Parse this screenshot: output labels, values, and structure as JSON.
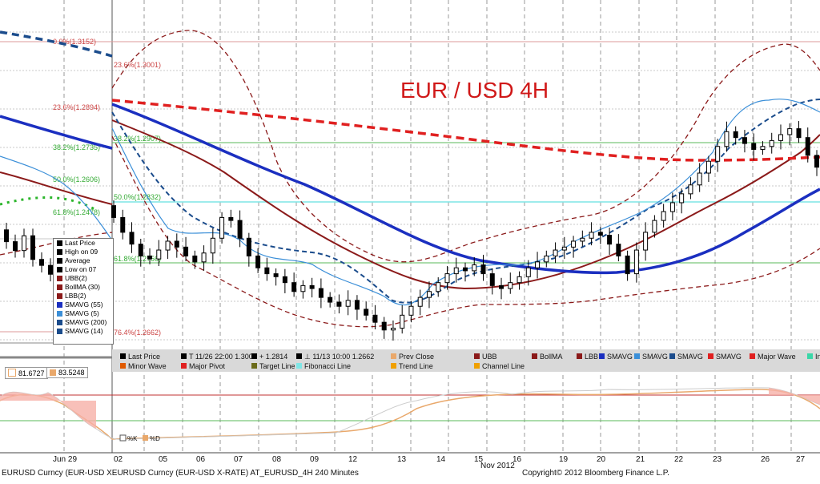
{
  "chart_data": {
    "type": "candlestick",
    "title": "EUR / USD 4H",
    "series": [
      {
        "name": "BollMA",
        "color": "#8b1a1a"
      },
      {
        "name": "SMAVG (55)",
        "color": "#1b2fc0"
      },
      {
        "name": "SMAVG (5)",
        "color": "#3b8fd8"
      },
      {
        "name": "SMAVG (200)",
        "color": "#e02020"
      },
      {
        "name": "SMAVG (14)",
        "color": "#1b4c8c"
      }
    ],
    "fibonacci": [
      {
        "label": "0.0%(1.3152)",
        "value": 1.3152
      },
      {
        "label": "23.6%(1.3001)",
        "value": 1.3001
      },
      {
        "label": "23.6%(1.2894)",
        "value": 1.2894
      },
      {
        "label": "38.2%(1.2907)",
        "value": 1.2907
      },
      {
        "label": "50.0%(1.2832)",
        "value": 1.2832
      },
      {
        "label": "61.8%(1.2756)",
        "value": 1.2756
      },
      {
        "label": "76.4%(1.2662)",
        "value": 1.2662
      }
    ],
    "left_labels": [
      "38.2%(1.2735)",
      "50.0%(1.2606)",
      "61.8%(1.2478)"
    ],
    "x_ticks": [
      "Jun 29",
      "02",
      "05",
      "06",
      "07",
      "08",
      "09",
      "12",
      "13",
      "14",
      "15",
      "16",
      "19",
      "20",
      "21",
      "22",
      "23",
      "26",
      "27"
    ],
    "x_sublabel": "Nov 2012",
    "legend_rows": [
      [
        "Last Price",
        "T 11/26 22:00 1.3009",
        "+ 1.2814",
        "⊥ 11/13 10:00 1.2662",
        "Prev Close",
        "UBB",
        "BollMA",
        "LBB",
        "SMAVG",
        "SMAVG",
        "SMAVG",
        "SMAVG",
        "Major Wave",
        "In"
      ],
      [
        "Minor Wave",
        "Major Pivot",
        "Target Line",
        "Fibonacci Line",
        "Trend Line",
        "Channel Line"
      ]
    ],
    "mini_legend": [
      "Last Price",
      "High on 09",
      "Average",
      "Low on 07",
      "UBB(2)",
      "BollMA (30)",
      "LBB(2)",
      "SMAVG (55)",
      "SMAVG (5)",
      "SMAVG (200)",
      "SMAVG (14)"
    ],
    "oscillator": {
      "k_value": "81.6727",
      "d_value": "83.5248",
      "k_label": "%K",
      "d_label": "%D"
    },
    "closes": [
      1.2855,
      1.283,
      1.281,
      1.279,
      1.2785,
      1.28,
      1.2815,
      1.2805,
      1.279,
      1.278,
      1.2795,
      1.282,
      1.2855,
      1.285,
      1.282,
      1.279,
      1.277,
      1.276,
      1.2755,
      1.2745,
      1.273,
      1.274,
      1.2735,
      1.272,
      1.2712,
      1.2705,
      1.2715,
      1.27,
      1.269,
      1.2678,
      1.2665,
      1.2668,
      1.269,
      1.2705,
      1.272,
      1.273,
      1.2745,
      1.276,
      1.277,
      1.2765,
      1.2775,
      1.276,
      1.274,
      1.2735,
      1.2745,
      1.2755,
      1.277,
      1.278,
      1.279,
      1.28,
      1.2805,
      1.2815,
      1.282,
      1.283,
      1.2825,
      1.281,
      1.279,
      1.276,
      1.28,
      1.283,
      1.285,
      1.2865,
      1.288,
      1.2895,
      1.291,
      1.293,
      1.295,
      1.2975,
      1.3,
      1.299,
      1.298,
      1.297,
      1.2975,
      1.2985,
      1.2995,
      1.3005,
      1.299,
      1.296,
      1.294
    ]
  },
  "footer": {
    "left": "EURUSD Curncy (EUR-USD XEURUSD Curncy (EUR-USD X-RATE) AT_EURUSD_4H  240 Minutes",
    "right": "Copyright© 2012 Bloomberg Finance L.P."
  },
  "colors": {
    "fib_green": "#5ab85a",
    "fib_cyan": "#7fe6e6",
    "legend_bg": "#d9d9d9"
  }
}
